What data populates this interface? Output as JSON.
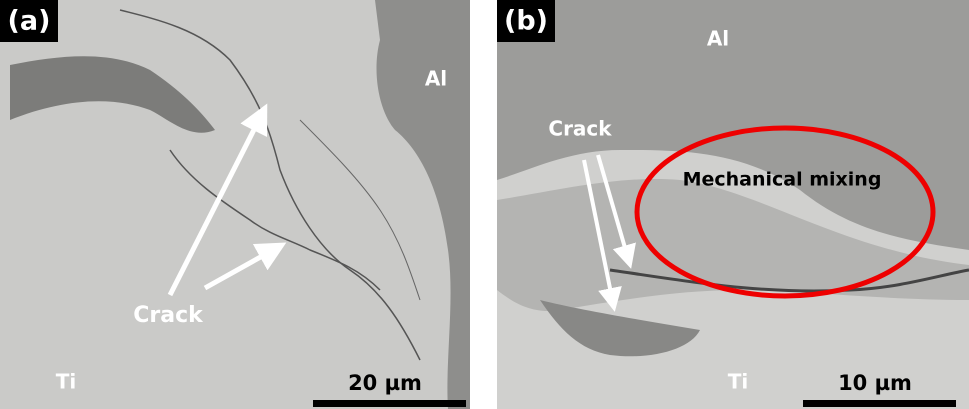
{
  "panels": [
    {
      "label": "(a)",
      "texts": [
        "Al",
        "Crack",
        "Ti"
      ],
      "scale_bar": "20 µm"
    },
    {
      "label": "(b)",
      "texts": [
        "Al",
        "Crack",
        "Mechanical mixing",
        "Ti"
      ],
      "scale_bar": "10 µm"
    }
  ]
}
